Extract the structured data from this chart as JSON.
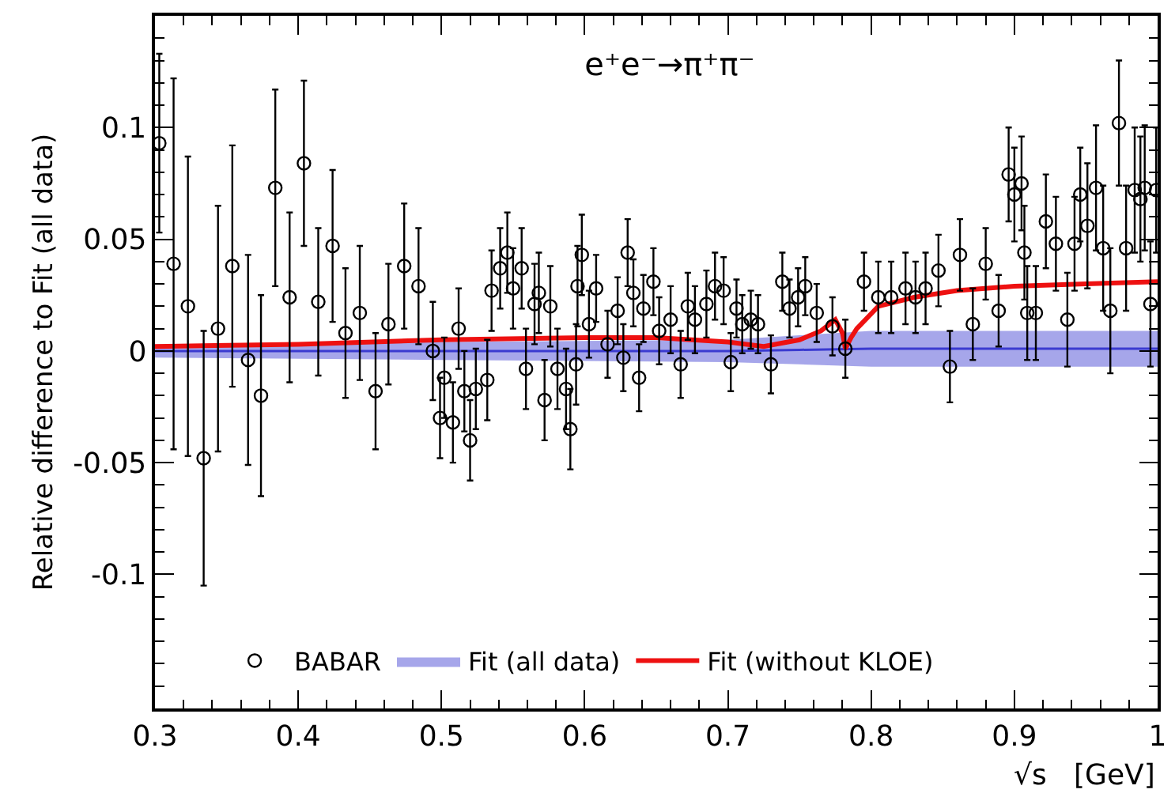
{
  "chart_data": {
    "type": "scatter",
    "title": "e⁺e⁻→π⁺π⁻",
    "xlabel": "√s   [GeV]",
    "ylabel": "Relative difference to Fit (all data)",
    "xlim": [
      0.3,
      1.0
    ],
    "ylim": [
      -0.16,
      0.15
    ],
    "xticks": [
      0.3,
      0.4,
      0.5,
      0.6,
      0.7,
      0.8,
      0.9,
      1
    ],
    "yticks": [
      -0.1,
      -0.05,
      0,
      0.05,
      0.1
    ],
    "legend": "bottom",
    "series": [
      {
        "name": "BABAR",
        "marker": "circle",
        "color": "#000000",
        "x": [
          0.303,
          0.313,
          0.323,
          0.334,
          0.344,
          0.354,
          0.365,
          0.374,
          0.384,
          0.394,
          0.404,
          0.414,
          0.424,
          0.433,
          0.443,
          0.454,
          0.463,
          0.474,
          0.484,
          0.494,
          0.499,
          0.502,
          0.508,
          0.512,
          0.516,
          0.52,
          0.524,
          0.532,
          0.535,
          0.541,
          0.546,
          0.55,
          0.556,
          0.559,
          0.565,
          0.568,
          0.572,
          0.576,
          0.581,
          0.587,
          0.59,
          0.594,
          0.595,
          0.598,
          0.603,
          0.608,
          0.616,
          0.623,
          0.627,
          0.63,
          0.634,
          0.638,
          0.641,
          0.648,
          0.652,
          0.66,
          0.667,
          0.672,
          0.677,
          0.685,
          0.691,
          0.697,
          0.702,
          0.706,
          0.71,
          0.716,
          0.721,
          0.73,
          0.738,
          0.743,
          0.749,
          0.754,
          0.762,
          0.773,
          0.782,
          0.795,
          0.805,
          0.814,
          0.824,
          0.831,
          0.838,
          0.847,
          0.855,
          0.862,
          0.871,
          0.88,
          0.889,
          0.896,
          0.9,
          0.905,
          0.907,
          0.909,
          0.915,
          0.922,
          0.929,
          0.937,
          0.942,
          0.946,
          0.951,
          0.957,
          0.962,
          0.967,
          0.973,
          0.978,
          0.984,
          0.988,
          0.991,
          0.995,
          0.999
        ],
        "values": [
          0.093,
          0.039,
          0.02,
          -0.048,
          0.01,
          0.038,
          -0.004,
          -0.02,
          0.073,
          0.024,
          0.084,
          0.022,
          0.047,
          0.008,
          0.017,
          -0.018,
          0.012,
          0.038,
          0.029,
          0.0,
          -0.03,
          -0.012,
          -0.032,
          0.01,
          -0.018,
          -0.04,
          -0.017,
          -0.013,
          0.027,
          0.037,
          0.044,
          0.028,
          0.037,
          -0.008,
          0.021,
          0.026,
          -0.022,
          0.02,
          -0.008,
          -0.017,
          -0.035,
          -0.006,
          0.029,
          0.043,
          0.012,
          0.028,
          0.003,
          0.018,
          -0.003,
          0.044,
          0.026,
          -0.012,
          0.019,
          0.031,
          0.009,
          0.014,
          -0.006,
          0.02,
          0.014,
          0.021,
          0.029,
          0.027,
          -0.005,
          0.019,
          0.012,
          0.014,
          0.012,
          -0.006,
          0.031,
          0.019,
          0.024,
          0.029,
          0.017,
          0.011,
          0.001,
          0.031,
          0.024,
          0.024,
          0.028,
          0.024,
          0.028,
          0.036,
          -0.007,
          0.043,
          0.012,
          0.039,
          0.018,
          0.079,
          0.07,
          0.075,
          0.044,
          0.017,
          0.017,
          0.058,
          0.048,
          0.014,
          0.048,
          0.07,
          0.056,
          0.073,
          0.046,
          0.018,
          0.102,
          0.046,
          0.072,
          0.068,
          0.073,
          0.021,
          0.072
        ],
        "errors": [
          0.04,
          0.083,
          0.067,
          0.057,
          0.055,
          0.054,
          0.047,
          0.045,
          0.044,
          0.038,
          0.037,
          0.033,
          0.034,
          0.029,
          0.03,
          0.026,
          0.027,
          0.028,
          0.026,
          0.022,
          0.018,
          0.018,
          0.018,
          0.018,
          0.018,
          0.018,
          0.018,
          0.018,
          0.018,
          0.018,
          0.018,
          0.018,
          0.018,
          0.018,
          0.018,
          0.018,
          0.018,
          0.018,
          0.018,
          0.018,
          0.018,
          0.018,
          0.018,
          0.018,
          0.015,
          0.015,
          0.015,
          0.015,
          0.015,
          0.015,
          0.015,
          0.015,
          0.015,
          0.015,
          0.015,
          0.015,
          0.015,
          0.015,
          0.015,
          0.015,
          0.015,
          0.015,
          0.013,
          0.013,
          0.013,
          0.013,
          0.013,
          0.013,
          0.013,
          0.013,
          0.013,
          0.013,
          0.013,
          0.013,
          0.013,
          0.013,
          0.016,
          0.016,
          0.016,
          0.016,
          0.016,
          0.016,
          0.016,
          0.016,
          0.016,
          0.016,
          0.016,
          0.021,
          0.021,
          0.021,
          0.021,
          0.021,
          0.021,
          0.021,
          0.021,
          0.021,
          0.021,
          0.021,
          0.028,
          0.028,
          0.028,
          0.028,
          0.028,
          0.028,
          0.028,
          0.028,
          0.028,
          0.028,
          0.028
        ]
      },
      {
        "name": "Fit (all data)",
        "type": "line",
        "color": "#3a3ad0",
        "x": [
          0.3,
          0.5,
          0.7,
          0.75,
          0.8,
          0.9,
          1.0
        ],
        "values": [
          0,
          0,
          0,
          0.0005,
          0.001,
          0.001,
          0.001
        ],
        "lower": [
          -0.003,
          -0.004,
          -0.005,
          -0.006,
          -0.007,
          -0.007,
          -0.007
        ],
        "upper": [
          0.003,
          0.004,
          0.005,
          0.007,
          0.009,
          0.009,
          0.009
        ]
      },
      {
        "name": "Fit (without KLOE)",
        "type": "line",
        "color": "#ee1111",
        "line_style": "solid",
        "x": [
          0.3,
          0.4,
          0.5,
          0.6,
          0.65,
          0.7,
          0.725,
          0.75,
          0.765,
          0.775,
          0.78,
          0.782,
          0.786,
          0.79,
          0.805,
          0.83,
          0.86,
          0.9,
          0.95,
          1.0
        ],
        "values": [
          0.002,
          0.003,
          0.005,
          0.006,
          0.006,
          0.004,
          0.002,
          0.005,
          0.009,
          0.014,
          0.008,
          0.001,
          0.006,
          0.01,
          0.02,
          0.024,
          0.027,
          0.029,
          0.03,
          0.031
        ]
      }
    ]
  }
}
